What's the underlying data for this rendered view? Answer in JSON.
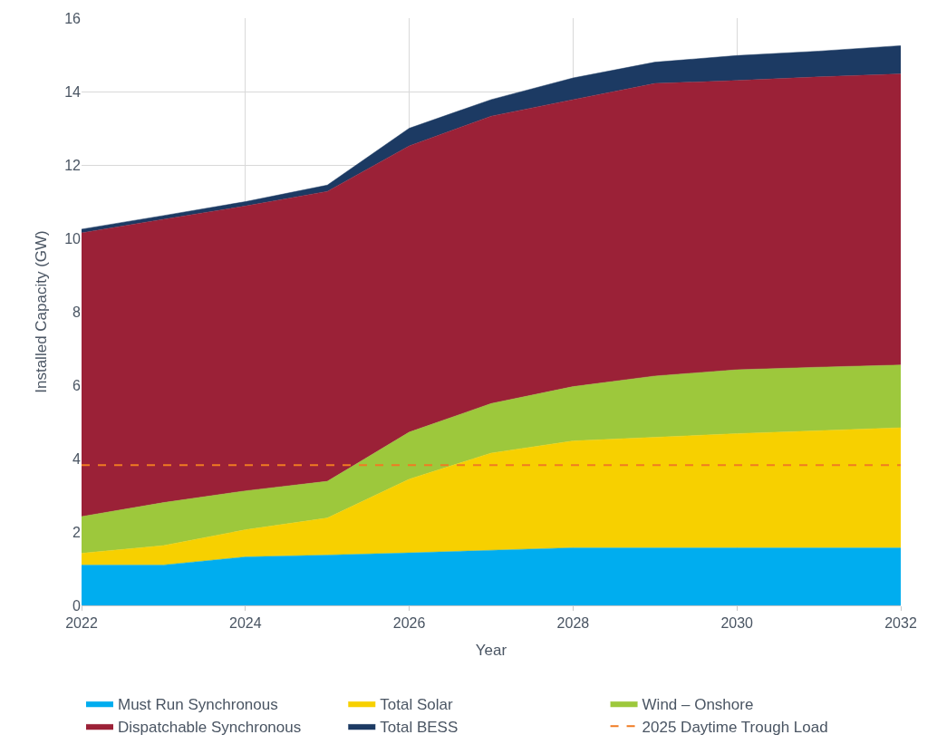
{
  "chart_data": {
    "type": "area",
    "stacked": true,
    "xlabel": "Year",
    "ylabel": "Installed Capacity (GW)",
    "x": [
      2022,
      2023,
      2024,
      2025,
      2026,
      2027,
      2028,
      2029,
      2030,
      2031,
      2032
    ],
    "series": [
      {
        "name": "Must Run Synchronous",
        "color": "#00adef",
        "values": [
          1.1,
          1.1,
          1.32,
          1.37,
          1.43,
          1.5,
          1.57,
          1.57,
          1.57,
          1.57,
          1.57
        ]
      },
      {
        "name": "Total Solar",
        "color": "#f7d000",
        "values": [
          0.32,
          0.53,
          0.74,
          1.01,
          2.01,
          2.65,
          2.91,
          3.01,
          3.11,
          3.19,
          3.27
        ]
      },
      {
        "name": "Wind – Onshore",
        "color": "#9dc83c",
        "values": [
          1.0,
          1.17,
          1.06,
          1.0,
          1.28,
          1.35,
          1.48,
          1.67,
          1.74,
          1.73,
          1.71
        ]
      },
      {
        "name": "Dispatchable Synchronous",
        "color": "#9b2137",
        "values": [
          7.73,
          7.72,
          7.76,
          7.9,
          7.8,
          7.83,
          7.82,
          7.97,
          7.88,
          7.91,
          7.93
        ]
      },
      {
        "name": "Total BESS",
        "color": "#1c3a63",
        "values": [
          0.1,
          0.1,
          0.12,
          0.17,
          0.48,
          0.45,
          0.59,
          0.58,
          0.68,
          0.7,
          0.77
        ]
      }
    ],
    "ref_lines": [
      {
        "axis": "y",
        "value": 3.82,
        "label": "2025 Daytime Trough Load",
        "color": "#f07b22",
        "line_style": "dashed"
      }
    ],
    "xlim": [
      2022,
      2032
    ],
    "xticks": [
      2022,
      2024,
      2026,
      2028,
      2030,
      2032
    ],
    "ylim": [
      0,
      16
    ],
    "yticks": [
      0,
      2,
      4,
      6,
      8,
      10,
      12,
      14,
      16
    ],
    "grid": true,
    "legend": "bottom"
  }
}
